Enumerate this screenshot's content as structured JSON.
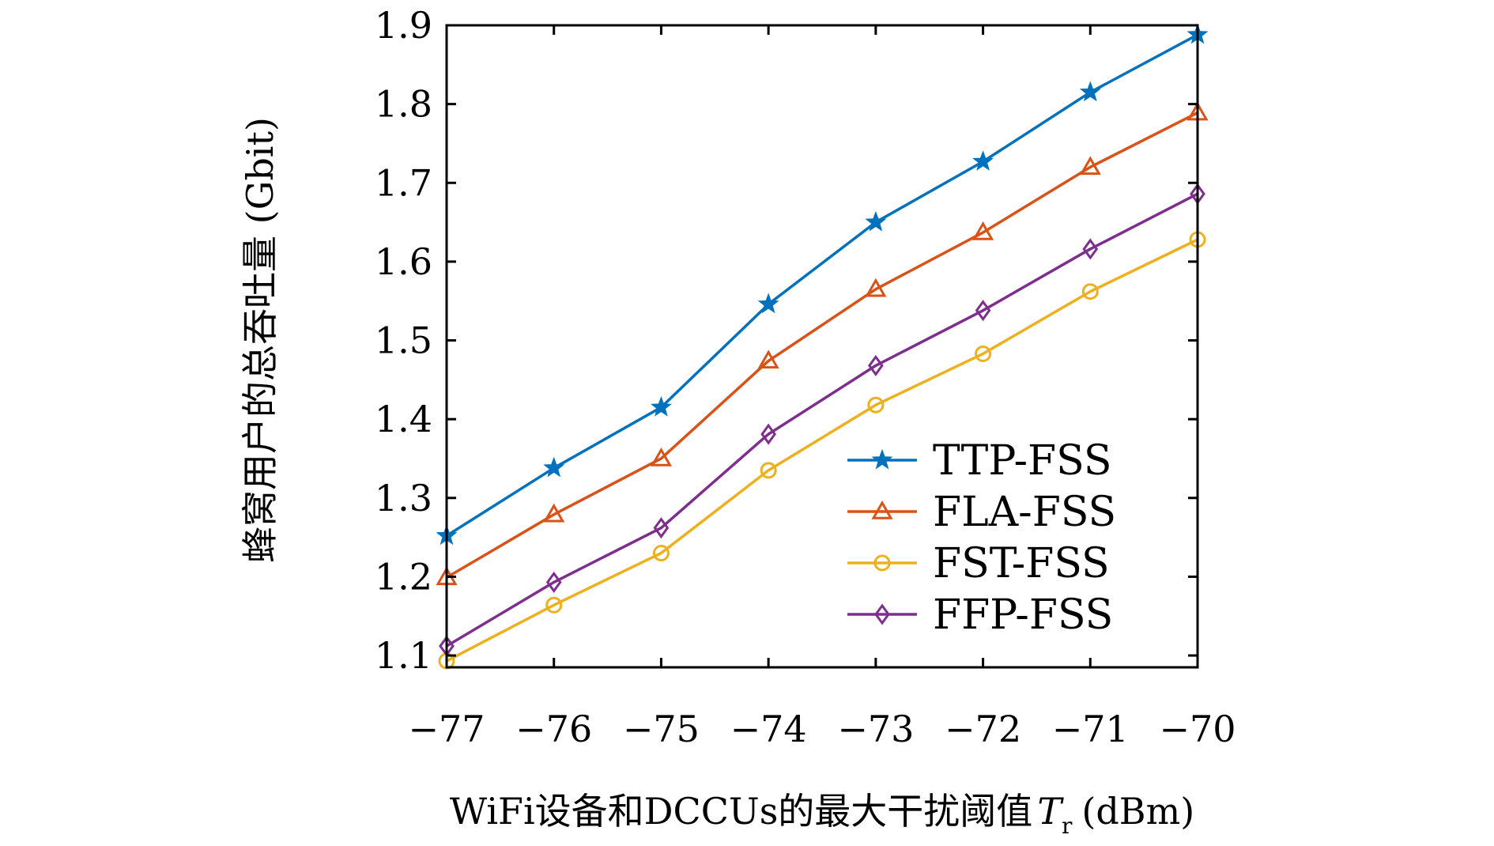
{
  "chart_data": {
    "type": "line",
    "title": "",
    "xlabel": "WiFi设备和DCCUs的最大干扰阈值",
    "xlabel_symbol": "T",
    "xlabel_subscript": "r",
    "xlabel_unit": "(dBm)",
    "ylabel": "蜂窝用户的总吞吐量 (Gbit)",
    "x": [
      -77,
      -76,
      -75,
      -74,
      -73,
      -72,
      -71,
      -70
    ],
    "x_tick_labels": [
      "−77",
      "−76",
      "−75",
      "−74",
      "−73",
      "−72",
      "−71",
      "−70"
    ],
    "xlim": [
      -77,
      -70
    ],
    "ylim": [
      1.085,
      1.9
    ],
    "y_ticks": [
      1.1,
      1.2,
      1.3,
      1.4,
      1.5,
      1.6,
      1.7,
      1.8,
      1.9
    ],
    "y_tick_labels": [
      "1.1",
      "1.2",
      "1.3",
      "1.4",
      "1.5",
      "1.6",
      "1.7",
      "1.8",
      "1.9"
    ],
    "grid": false,
    "legend_position": "bottom-right",
    "series": [
      {
        "name": "TTP-FSS",
        "color": "#0072BD",
        "marker": "star",
        "values": [
          1.252,
          1.338,
          1.415,
          1.546,
          1.65,
          1.727,
          1.815,
          1.888
        ]
      },
      {
        "name": "FLA-FSS",
        "color": "#D95319",
        "marker": "triangle",
        "values": [
          1.199,
          1.279,
          1.35,
          1.474,
          1.565,
          1.637,
          1.72,
          1.789
        ]
      },
      {
        "name": "FST-FSS",
        "color": "#EDB120",
        "marker": "circle",
        "values": [
          1.093,
          1.164,
          1.23,
          1.335,
          1.418,
          1.483,
          1.562,
          1.628
        ]
      },
      {
        "name": "FFP-FSS",
        "color": "#7E2F8E",
        "marker": "diamond",
        "values": [
          1.112,
          1.193,
          1.262,
          1.381,
          1.468,
          1.538,
          1.616,
          1.686
        ]
      }
    ]
  }
}
